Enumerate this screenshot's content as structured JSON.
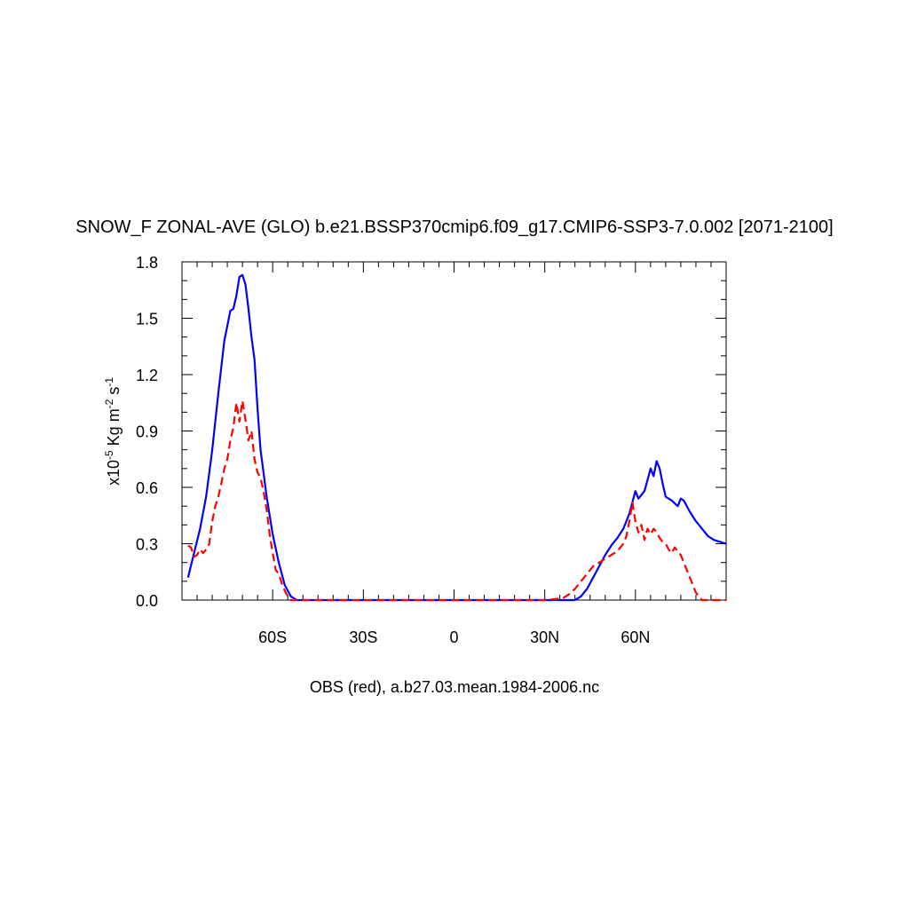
{
  "chart_data": {
    "type": "line",
    "title": "SNOW_F ZONAL-AVE (GLO) b.e21.BSSP370cmip6.f09_g17.CMIP6-SSP3-7.0.002 [2071-2100]",
    "subtitle": "OBS (red), a.b27.03.mean.1984-2006.nc",
    "ylabel_parts": {
      "pre": "x10",
      "exp1": "-5",
      "mid": " Kg m",
      "exp2": "-2",
      "mid2": " s",
      "exp3": "-1"
    },
    "xlim": [
      -90,
      90
    ],
    "ylim": [
      0,
      1.8
    ],
    "x_ticks": [
      {
        "value": -60,
        "label": "60S"
      },
      {
        "value": -30,
        "label": "30S"
      },
      {
        "value": 0,
        "label": "0"
      },
      {
        "value": 30,
        "label": "30N"
      },
      {
        "value": 60,
        "label": "60N"
      }
    ],
    "y_ticks": [
      {
        "value": 0,
        "label": "0.0"
      },
      {
        "value": 0.3,
        "label": "0.3"
      },
      {
        "value": 0.6,
        "label": "0.6"
      },
      {
        "value": 0.9,
        "label": "0.9"
      },
      {
        "value": 1.2,
        "label": "1.2"
      },
      {
        "value": 1.5,
        "label": "1.5"
      },
      {
        "value": 1.8,
        "label": "1.8"
      }
    ],
    "series": [
      {
        "color": "#0000ff",
        "dash": "solid",
        "points": [
          [
            -88,
            0.12
          ],
          [
            -86,
            0.25
          ],
          [
            -84,
            0.38
          ],
          [
            -82,
            0.55
          ],
          [
            -80,
            0.8
          ],
          [
            -78,
            1.1
          ],
          [
            -76,
            1.38
          ],
          [
            -74,
            1.54
          ],
          [
            -73,
            1.55
          ],
          [
            -72,
            1.62
          ],
          [
            -71,
            1.72
          ],
          [
            -70,
            1.73
          ],
          [
            -69,
            1.68
          ],
          [
            -68,
            1.55
          ],
          [
            -67,
            1.4
          ],
          [
            -66,
            1.28
          ],
          [
            -65,
            1.02
          ],
          [
            -64,
            0.8
          ],
          [
            -62,
            0.55
          ],
          [
            -60,
            0.35
          ],
          [
            -58,
            0.2
          ],
          [
            -56,
            0.08
          ],
          [
            -54,
            0.02
          ],
          [
            -52,
            0.0
          ],
          [
            -30,
            0.0
          ],
          [
            0,
            0.0
          ],
          [
            30,
            0.0
          ],
          [
            40,
            0.0
          ],
          [
            42,
            0.02
          ],
          [
            44,
            0.06
          ],
          [
            46,
            0.12
          ],
          [
            48,
            0.18
          ],
          [
            50,
            0.24
          ],
          [
            52,
            0.29
          ],
          [
            54,
            0.33
          ],
          [
            56,
            0.38
          ],
          [
            58,
            0.46
          ],
          [
            59,
            0.52
          ],
          [
            60,
            0.58
          ],
          [
            61,
            0.54
          ],
          [
            62,
            0.56
          ],
          [
            63,
            0.58
          ],
          [
            64,
            0.64
          ],
          [
            65,
            0.7
          ],
          [
            66,
            0.66
          ],
          [
            67,
            0.74
          ],
          [
            68,
            0.7
          ],
          [
            69,
            0.62
          ],
          [
            70,
            0.55
          ],
          [
            72,
            0.53
          ],
          [
            74,
            0.5
          ],
          [
            75,
            0.54
          ],
          [
            76,
            0.53
          ],
          [
            78,
            0.47
          ],
          [
            80,
            0.42
          ],
          [
            82,
            0.38
          ],
          [
            84,
            0.34
          ],
          [
            86,
            0.32
          ],
          [
            88,
            0.31
          ],
          [
            90,
            0.3
          ]
        ]
      },
      {
        "color": "#ff0000",
        "dash": "dashed",
        "points": [
          [
            -88,
            0.29
          ],
          [
            -87,
            0.28
          ],
          [
            -86,
            0.23
          ],
          [
            -85,
            0.24
          ],
          [
            -84,
            0.27
          ],
          [
            -83,
            0.25
          ],
          [
            -82,
            0.27
          ],
          [
            -81,
            0.3
          ],
          [
            -80,
            0.42
          ],
          [
            -79,
            0.5
          ],
          [
            -78,
            0.55
          ],
          [
            -77,
            0.62
          ],
          [
            -76,
            0.7
          ],
          [
            -75,
            0.75
          ],
          [
            -74,
            0.85
          ],
          [
            -73,
            0.92
          ],
          [
            -72,
            1.05
          ],
          [
            -71,
            0.95
          ],
          [
            -70,
            1.06
          ],
          [
            -69,
            0.96
          ],
          [
            -68,
            0.85
          ],
          [
            -67,
            0.9
          ],
          [
            -66,
            0.75
          ],
          [
            -65,
            0.68
          ],
          [
            -64,
            0.65
          ],
          [
            -63,
            0.58
          ],
          [
            -62,
            0.48
          ],
          [
            -61,
            0.35
          ],
          [
            -60,
            0.25
          ],
          [
            -59,
            0.16
          ],
          [
            -58,
            0.14
          ],
          [
            -57,
            0.09
          ],
          [
            -56,
            0.05
          ],
          [
            -55,
            0.02
          ],
          [
            -54,
            0.0
          ],
          [
            -30,
            0.0
          ],
          [
            0,
            0.0
          ],
          [
            30,
            0.0
          ],
          [
            36,
            0.01
          ],
          [
            38,
            0.03
          ],
          [
            40,
            0.06
          ],
          [
            42,
            0.1
          ],
          [
            44,
            0.14
          ],
          [
            46,
            0.18
          ],
          [
            48,
            0.2
          ],
          [
            50,
            0.22
          ],
          [
            52,
            0.24
          ],
          [
            54,
            0.26
          ],
          [
            56,
            0.3
          ],
          [
            57,
            0.34
          ],
          [
            58,
            0.42
          ],
          [
            59,
            0.52
          ],
          [
            60,
            0.42
          ],
          [
            61,
            0.36
          ],
          [
            62,
            0.4
          ],
          [
            63,
            0.32
          ],
          [
            64,
            0.38
          ],
          [
            65,
            0.35
          ],
          [
            66,
            0.38
          ],
          [
            67,
            0.36
          ],
          [
            68,
            0.33
          ],
          [
            69,
            0.31
          ],
          [
            70,
            0.3
          ],
          [
            71,
            0.27
          ],
          [
            72,
            0.25
          ],
          [
            73,
            0.28
          ],
          [
            74,
            0.26
          ],
          [
            75,
            0.24
          ],
          [
            76,
            0.2
          ],
          [
            77,
            0.16
          ],
          [
            78,
            0.12
          ],
          [
            79,
            0.08
          ],
          [
            80,
            0.04
          ],
          [
            81,
            0.02
          ],
          [
            82,
            0.0
          ],
          [
            84,
            0.0
          ],
          [
            88,
            0.0
          ],
          [
            90,
            0.0
          ]
        ]
      }
    ]
  }
}
